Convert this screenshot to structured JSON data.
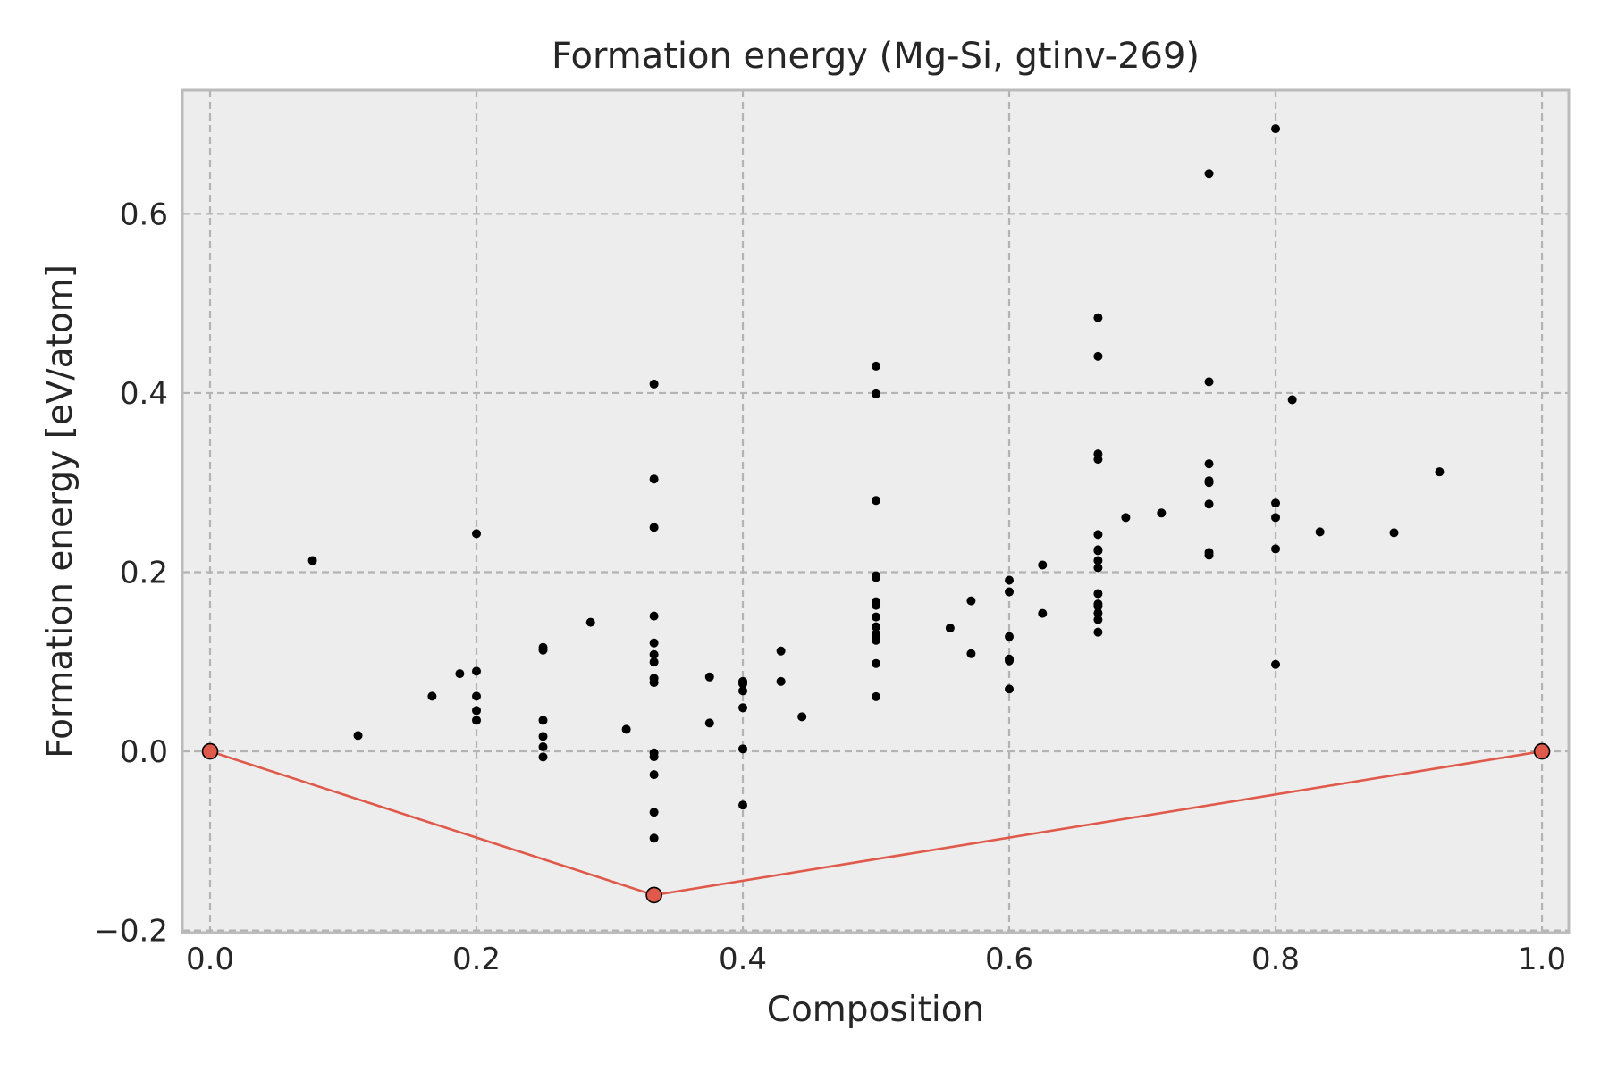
{
  "chart_data": {
    "type": "scatter",
    "title": "Formation energy (Mg-Si, gtinv-269)",
    "xlabel": "Composition",
    "ylabel": "Formation energy [eV/atom]",
    "xlim": [
      -0.0208,
      1.0201
    ],
    "ylim": [
      -0.2024,
      0.738
    ],
    "grid": true,
    "xticks": [
      0.0,
      0.2,
      0.4,
      0.6,
      0.8,
      1.0
    ],
    "xtick_labels": [
      "0.0",
      "0.2",
      "0.4",
      "0.6",
      "0.8",
      "1.0"
    ],
    "yticks": [
      -0.2,
      0.0,
      0.2,
      0.4,
      0.6
    ],
    "ytick_labels": [
      "−0.2",
      "0.0",
      "0.2",
      "0.4",
      "0.6"
    ],
    "colors": {
      "background": "#EDEDED",
      "spine": "#BBBBBB",
      "grid": "#B3B3B3",
      "points": "#000000",
      "hull": "#E05A4B"
    },
    "series": [
      {
        "name": "structures",
        "kind": "scatter",
        "points": [
          [
            0.0769,
            0.213
          ],
          [
            0.1111,
            0.0176
          ],
          [
            0.1667,
            0.0615
          ],
          [
            0.1875,
            0.0867
          ],
          [
            0.2,
            0.243
          ],
          [
            0.2,
            0.0894
          ],
          [
            0.2,
            0.0615
          ],
          [
            0.2,
            0.0455
          ],
          [
            0.2,
            0.0346
          ],
          [
            0.25,
            0.116
          ],
          [
            0.25,
            0.113
          ],
          [
            0.25,
            0.0346
          ],
          [
            0.25,
            0.0166
          ],
          [
            0.25,
            0.005
          ],
          [
            0.25,
            -0.0063
          ],
          [
            0.2857,
            0.144
          ],
          [
            0.3125,
            0.0246
          ],
          [
            0.3333,
            0.41
          ],
          [
            0.3333,
            0.304
          ],
          [
            0.3333,
            0.25
          ],
          [
            0.3333,
            0.151
          ],
          [
            0.3333,
            0.121
          ],
          [
            0.3333,
            0.108
          ],
          [
            0.3333,
            0.0997
          ],
          [
            0.3333,
            0.0815
          ],
          [
            0.3333,
            0.0768
          ],
          [
            0.3333,
            -0.0017
          ],
          [
            0.3333,
            -0.006
          ],
          [
            0.3333,
            -0.026
          ],
          [
            0.3333,
            -0.068
          ],
          [
            0.3333,
            -0.097
          ],
          [
            0.375,
            0.083
          ],
          [
            0.375,
            0.0316
          ],
          [
            0.4,
            0.078
          ],
          [
            0.4,
            0.0755
          ],
          [
            0.4,
            0.0675
          ],
          [
            0.4,
            0.0486
          ],
          [
            0.4,
            0.0027
          ],
          [
            0.4,
            -0.06
          ],
          [
            0.4286,
            0.112
          ],
          [
            0.4286,
            0.078
          ],
          [
            0.4444,
            0.0386
          ],
          [
            0.5,
            0.43
          ],
          [
            0.5,
            0.399
          ],
          [
            0.5,
            0.28
          ],
          [
            0.5,
            0.196
          ],
          [
            0.5,
            0.194
          ],
          [
            0.5,
            0.167
          ],
          [
            0.5,
            0.163
          ],
          [
            0.5,
            0.15
          ],
          [
            0.5,
            0.139
          ],
          [
            0.5,
            0.131
          ],
          [
            0.5,
            0.127
          ],
          [
            0.5,
            0.124
          ],
          [
            0.5,
            0.098
          ],
          [
            0.5,
            0.061
          ],
          [
            0.5556,
            0.1376
          ],
          [
            0.5714,
            0.168
          ],
          [
            0.5714,
            0.109
          ],
          [
            0.6,
            0.191
          ],
          [
            0.6,
            0.178
          ],
          [
            0.6,
            0.128
          ],
          [
            0.6,
            0.103
          ],
          [
            0.6,
            0.101
          ],
          [
            0.6,
            0.0695
          ],
          [
            0.625,
            0.208
          ],
          [
            0.625,
            0.154
          ],
          [
            0.6667,
            0.484
          ],
          [
            0.6667,
            0.441
          ],
          [
            0.6667,
            0.332
          ],
          [
            0.6667,
            0.326
          ],
          [
            0.6667,
            0.242
          ],
          [
            0.6667,
            0.225
          ],
          [
            0.6667,
            0.224
          ],
          [
            0.6667,
            0.213
          ],
          [
            0.6667,
            0.205
          ],
          [
            0.6667,
            0.176
          ],
          [
            0.6667,
            0.1645
          ],
          [
            0.6667,
            0.162
          ],
          [
            0.6667,
            0.1545
          ],
          [
            0.6667,
            0.147
          ],
          [
            0.6667,
            0.133
          ],
          [
            0.6875,
            0.261
          ],
          [
            0.7143,
            0.266
          ],
          [
            0.75,
            0.645
          ],
          [
            0.75,
            0.4125
          ],
          [
            0.75,
            0.321
          ],
          [
            0.75,
            0.302
          ],
          [
            0.75,
            0.3
          ],
          [
            0.75,
            0.276
          ],
          [
            0.75,
            0.222
          ],
          [
            0.75,
            0.219
          ],
          [
            0.8,
            0.695
          ],
          [
            0.8,
            0.277
          ],
          [
            0.8,
            0.261
          ],
          [
            0.8,
            0.226
          ],
          [
            0.8,
            0.097
          ],
          [
            0.8125,
            0.3925
          ],
          [
            0.8333,
            0.245
          ],
          [
            0.8889,
            0.244
          ],
          [
            0.9231,
            0.312
          ]
        ]
      },
      {
        "name": "convex hull",
        "kind": "line+markers",
        "points": [
          [
            0.0,
            0.0
          ],
          [
            0.3333,
            -0.1605
          ],
          [
            1.0,
            0.0
          ]
        ]
      }
    ]
  }
}
